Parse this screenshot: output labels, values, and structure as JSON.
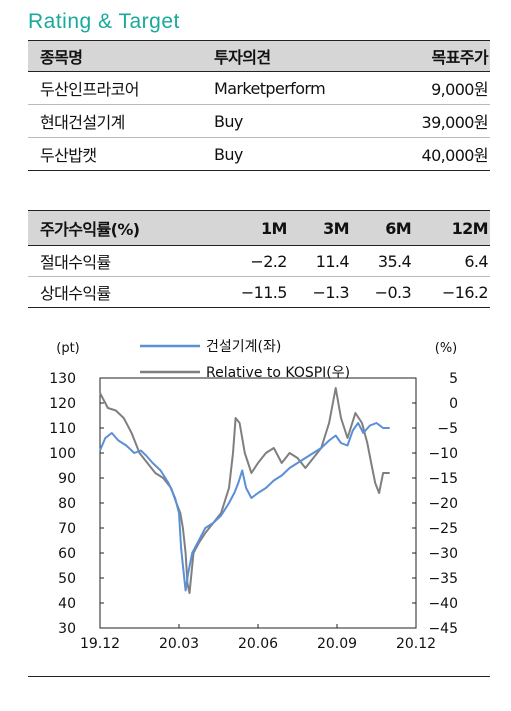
{
  "section_title": "Rating & Target",
  "rating_table": {
    "headers": [
      "종목명",
      "투자의견",
      "목표주가"
    ],
    "rows": [
      [
        "두산인프라코어",
        "Marketperform",
        "9,000원"
      ],
      [
        "현대건설기계",
        "Buy",
        "39,000원"
      ],
      [
        "두산밥캣",
        "Buy",
        "40,000원"
      ]
    ]
  },
  "return_table": {
    "headers": [
      "주가수익률(%)",
      "1M",
      "3M",
      "6M",
      "12M"
    ],
    "rows": [
      [
        "절대수익률",
        "−2.2",
        "11.4",
        "35.4",
        "6.4"
      ],
      [
        "상대수익률",
        "−11.5",
        "−1.3",
        "−0.3",
        "−16.2"
      ]
    ]
  },
  "chart_data": {
    "type": "line",
    "left_unit": "(pt)",
    "right_unit": "(%)",
    "x_ticks": [
      "19.12",
      "20.03",
      "20.06",
      "20.09",
      "20.12"
    ],
    "y_left": {
      "range": [
        30,
        130
      ],
      "ticks": [
        "130",
        "120",
        "110",
        "100",
        "90",
        "80",
        "70",
        "60",
        "50",
        "40",
        "30"
      ]
    },
    "y_right": {
      "range": [
        -45,
        5
      ],
      "ticks": [
        "5",
        "0",
        "−5",
        "−10",
        "−15",
        "−20",
        "−25",
        "−30",
        "−35",
        "−40",
        "−45"
      ]
    },
    "series": [
      {
        "name": "건설기계(좌)",
        "axis": "left",
        "color": "#5b8fd6",
        "points": [
          [
            0,
            101
          ],
          [
            0.2,
            106
          ],
          [
            0.45,
            108
          ],
          [
            0.7,
            105
          ],
          [
            1.0,
            103
          ],
          [
            1.3,
            100
          ],
          [
            1.55,
            101
          ],
          [
            1.75,
            99
          ],
          [
            2.0,
            96
          ],
          [
            2.3,
            93
          ],
          [
            2.6,
            88
          ],
          [
            2.85,
            82
          ],
          [
            3.0,
            76
          ],
          [
            3.08,
            62
          ],
          [
            3.15,
            55
          ],
          [
            3.25,
            45
          ],
          [
            3.35,
            52
          ],
          [
            3.5,
            60
          ],
          [
            3.75,
            65
          ],
          [
            4.0,
            70
          ],
          [
            4.3,
            72
          ],
          [
            4.6,
            75
          ],
          [
            4.9,
            80
          ],
          [
            5.1,
            84
          ],
          [
            5.25,
            88
          ],
          [
            5.4,
            93
          ],
          [
            5.55,
            86
          ],
          [
            5.75,
            82
          ],
          [
            6.0,
            84
          ],
          [
            6.3,
            86
          ],
          [
            6.6,
            89
          ],
          [
            6.9,
            91
          ],
          [
            7.2,
            94
          ],
          [
            7.5,
            96
          ],
          [
            7.8,
            98
          ],
          [
            8.1,
            100
          ],
          [
            8.4,
            102
          ],
          [
            8.7,
            105
          ],
          [
            8.95,
            107
          ],
          [
            9.15,
            104
          ],
          [
            9.4,
            103
          ],
          [
            9.6,
            109
          ],
          [
            9.8,
            112
          ],
          [
            10.0,
            108
          ],
          [
            10.25,
            111
          ],
          [
            10.5,
            112
          ],
          [
            10.75,
            110
          ],
          [
            11.0,
            110
          ]
        ]
      },
      {
        "name": "Relative to KOSPI(우)",
        "axis": "right",
        "color": "#7f7f7f",
        "points": [
          [
            0,
            2
          ],
          [
            0.3,
            -1
          ],
          [
            0.6,
            -1.5
          ],
          [
            0.9,
            -3
          ],
          [
            1.2,
            -6
          ],
          [
            1.5,
            -10
          ],
          [
            1.8,
            -12
          ],
          [
            2.1,
            -14
          ],
          [
            2.4,
            -15
          ],
          [
            2.7,
            -17
          ],
          [
            2.9,
            -20
          ],
          [
            3.05,
            -22
          ],
          [
            3.15,
            -25
          ],
          [
            3.25,
            -30
          ],
          [
            3.32,
            -36
          ],
          [
            3.4,
            -38
          ],
          [
            3.55,
            -30
          ],
          [
            3.75,
            -28
          ],
          [
            4.0,
            -26
          ],
          [
            4.3,
            -24
          ],
          [
            4.6,
            -22
          ],
          [
            4.9,
            -17
          ],
          [
            5.05,
            -10
          ],
          [
            5.15,
            -3
          ],
          [
            5.3,
            -4
          ],
          [
            5.5,
            -10
          ],
          [
            5.75,
            -14
          ],
          [
            6.0,
            -12
          ],
          [
            6.3,
            -10
          ],
          [
            6.6,
            -9
          ],
          [
            6.9,
            -12
          ],
          [
            7.2,
            -10
          ],
          [
            7.5,
            -11
          ],
          [
            7.8,
            -13
          ],
          [
            8.1,
            -11
          ],
          [
            8.4,
            -9
          ],
          [
            8.7,
            -4
          ],
          [
            8.95,
            3
          ],
          [
            9.15,
            -3
          ],
          [
            9.4,
            -7
          ],
          [
            9.7,
            -2
          ],
          [
            9.95,
            -4
          ],
          [
            10.15,
            -8
          ],
          [
            10.3,
            -12
          ],
          [
            10.45,
            -16
          ],
          [
            10.6,
            -18
          ],
          [
            10.75,
            -14
          ],
          [
            11.0,
            -14
          ]
        ]
      }
    ]
  }
}
